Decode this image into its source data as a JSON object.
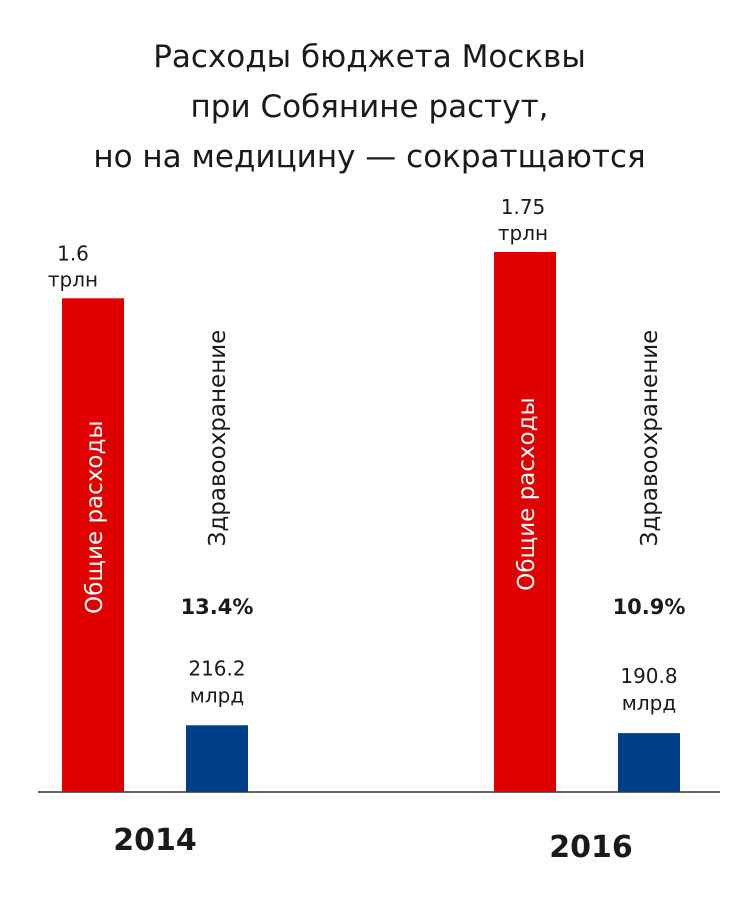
{
  "title_lines": [
    "Расходы бюджета Москвы",
    "при Собянине растут,",
    "но на медицину — сократщаются"
  ],
  "colors": {
    "total": "#e00000",
    "health": "#003f87"
  },
  "chart_data": {
    "type": "bar",
    "title": "Расходы бюджета Москвы при Собянине растут, но на медицину — сократщаются",
    "categories": [
      "2014",
      "2016"
    ],
    "series": [
      {
        "name": "Общие расходы",
        "values": [
          1600,
          1750
        ],
        "value_labels": [
          "1.6",
          "1.75"
        ],
        "unit": "трлн"
      },
      {
        "name": "Здравоохранение",
        "values": [
          216.2,
          190.8
        ],
        "value_labels": [
          "216.2",
          "190.8"
        ],
        "unit": "млрд",
        "share_labels": [
          "13.4%",
          "10.9%"
        ]
      }
    ],
    "value_unit": "млрд",
    "ylim": [
      0,
      1750
    ],
    "grid": false,
    "legend": "none"
  }
}
